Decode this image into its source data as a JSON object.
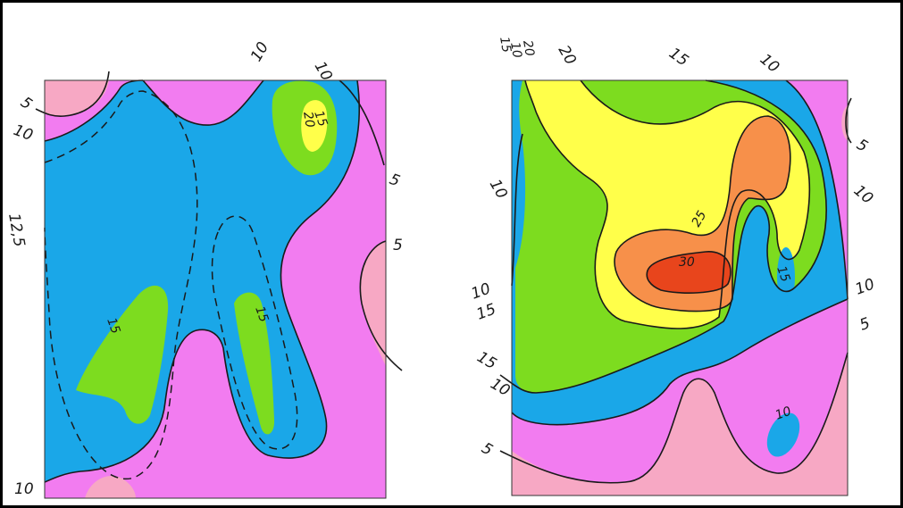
{
  "colors": {
    "band_0_5": "#f7a8c4",
    "band_5_10": "#f27cf0",
    "band_10_15": "#1aa7e8",
    "band_15_20": "#7ddc1f",
    "band_20_25": "#ffff4a",
    "band_25_30": "#f7904a",
    "band_30_plus": "#e8451c"
  },
  "left_map": {
    "labels": [
      "5",
      "10",
      "10",
      "10",
      "15",
      "20",
      "5",
      "12,5",
      "5",
      "15",
      "15",
      "10"
    ]
  },
  "right_map": {
    "labels": [
      "15",
      "10",
      "20",
      "20",
      "15",
      "10",
      "5",
      "10",
      "10",
      "25",
      "30",
      "15",
      "10",
      "15",
      "10",
      "5",
      "15",
      "10",
      "5",
      "10"
    ]
  }
}
